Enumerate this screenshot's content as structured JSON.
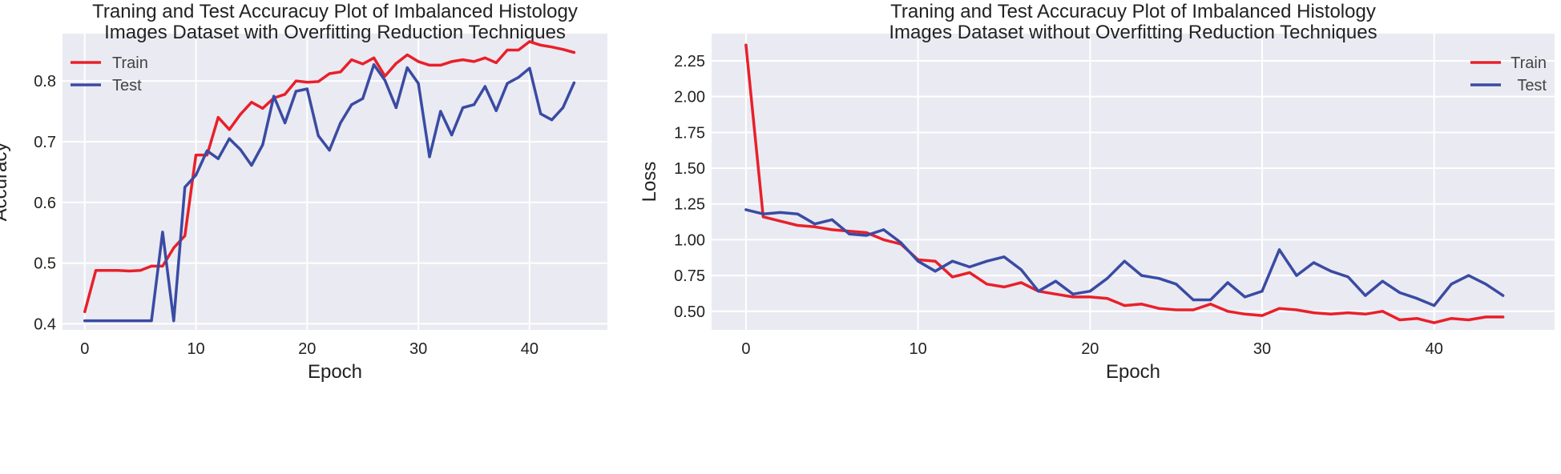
{
  "chart_data": [
    {
      "type": "line",
      "title_lines": [
        "Traning and Test Accuracuy Plot of Imbalanced Histology",
        "Images Dataset with Overfitting Reduction Techniques"
      ],
      "xlabel": "Epoch",
      "ylabel": "Accuracy",
      "xlim": [
        -2,
        47
      ],
      "ylim": [
        0.39,
        0.878
      ],
      "xticks": [
        0,
        10,
        20,
        30,
        40
      ],
      "yticks": [
        0.4,
        0.5,
        0.6,
        0.7,
        0.8
      ],
      "ytick_labels": [
        "0.4",
        "0.5",
        "0.6",
        "0.7",
        "0.8"
      ],
      "grid": true,
      "legend_position": "top-left",
      "x": [
        0,
        1,
        2,
        3,
        4,
        5,
        6,
        7,
        8,
        9,
        10,
        11,
        12,
        13,
        14,
        15,
        16,
        17,
        18,
        19,
        20,
        21,
        22,
        23,
        24,
        25,
        26,
        27,
        28,
        29,
        30,
        31,
        32,
        33,
        34,
        35,
        36,
        37,
        38,
        39,
        40,
        41,
        42,
        43,
        44
      ],
      "series": [
        {
          "name": "Train",
          "color": "#e8202a",
          "values": [
            0.42,
            0.488,
            0.488,
            0.488,
            0.487,
            0.488,
            0.495,
            0.495,
            0.525,
            0.545,
            0.678,
            0.678,
            0.74,
            0.72,
            0.745,
            0.765,
            0.755,
            0.772,
            0.778,
            0.8,
            0.798,
            0.799,
            0.812,
            0.815,
            0.835,
            0.828,
            0.838,
            0.808,
            0.829,
            0.843,
            0.832,
            0.826,
            0.826,
            0.832,
            0.835,
            0.832,
            0.838,
            0.83,
            0.851,
            0.851,
            0.865,
            0.859,
            0.856,
            0.852,
            0.847
          ]
        },
        {
          "name": "Test",
          "color": "#3a4ba3",
          "values": [
            0.405,
            0.405,
            0.405,
            0.405,
            0.405,
            0.405,
            0.405,
            0.551,
            0.405,
            0.625,
            0.645,
            0.685,
            0.672,
            0.705,
            0.687,
            0.661,
            0.695,
            0.775,
            0.731,
            0.783,
            0.787,
            0.71,
            0.686,
            0.731,
            0.761,
            0.771,
            0.827,
            0.801,
            0.756,
            0.822,
            0.796,
            0.675,
            0.75,
            0.711,
            0.756,
            0.761,
            0.791,
            0.751,
            0.796,
            0.806,
            0.821,
            0.746,
            0.736,
            0.756,
            0.797
          ]
        }
      ]
    },
    {
      "type": "line",
      "title_lines": [
        "Traning and Test Accuracuy Plot of Imbalanced Histology",
        "Images Dataset without Overfitting Reduction Techniques"
      ],
      "xlabel": "Epoch",
      "ylabel": "Loss",
      "xlim": [
        -2,
        47
      ],
      "ylim": [
        0.37,
        2.44
      ],
      "xticks": [
        0,
        10,
        20,
        30,
        40
      ],
      "yticks": [
        0.5,
        0.75,
        1.0,
        1.25,
        1.5,
        1.75,
        2.0,
        2.25
      ],
      "ytick_labels": [
        "0.50",
        "0.75",
        "1.00",
        "1.25",
        "1.50",
        "1.75",
        "2.00",
        "2.25"
      ],
      "grid": true,
      "legend_position": "top-right",
      "x": [
        0,
        1,
        2,
        3,
        4,
        5,
        6,
        7,
        8,
        9,
        10,
        11,
        12,
        13,
        14,
        15,
        16,
        17,
        18,
        19,
        20,
        21,
        22,
        23,
        24,
        25,
        26,
        27,
        28,
        29,
        30,
        31,
        32,
        33,
        34,
        35,
        36,
        37,
        38,
        39,
        40,
        41,
        42,
        43,
        44
      ],
      "series": [
        {
          "name": "Train",
          "color": "#e8202a",
          "values": [
            2.36,
            1.16,
            1.13,
            1.1,
            1.09,
            1.07,
            1.06,
            1.05,
            1.0,
            0.97,
            0.86,
            0.85,
            0.74,
            0.77,
            0.69,
            0.67,
            0.7,
            0.64,
            0.62,
            0.6,
            0.6,
            0.59,
            0.54,
            0.55,
            0.52,
            0.51,
            0.51,
            0.55,
            0.5,
            0.48,
            0.47,
            0.52,
            0.51,
            0.49,
            0.48,
            0.49,
            0.48,
            0.5,
            0.44,
            0.45,
            0.42,
            0.45,
            0.44,
            0.46,
            0.46
          ]
        },
        {
          "name": "Test",
          "color": "#3a4ba3",
          "values": [
            1.21,
            1.18,
            1.19,
            1.18,
            1.11,
            1.14,
            1.04,
            1.03,
            1.07,
            0.98,
            0.85,
            0.78,
            0.85,
            0.81,
            0.85,
            0.88,
            0.79,
            0.64,
            0.71,
            0.62,
            0.64,
            0.73,
            0.85,
            0.75,
            0.73,
            0.69,
            0.58,
            0.58,
            0.7,
            0.6,
            0.64,
            0.93,
            0.75,
            0.84,
            0.78,
            0.74,
            0.61,
            0.71,
            0.63,
            0.59,
            0.54,
            0.69,
            0.75,
            0.69,
            0.61
          ]
        }
      ]
    }
  ]
}
